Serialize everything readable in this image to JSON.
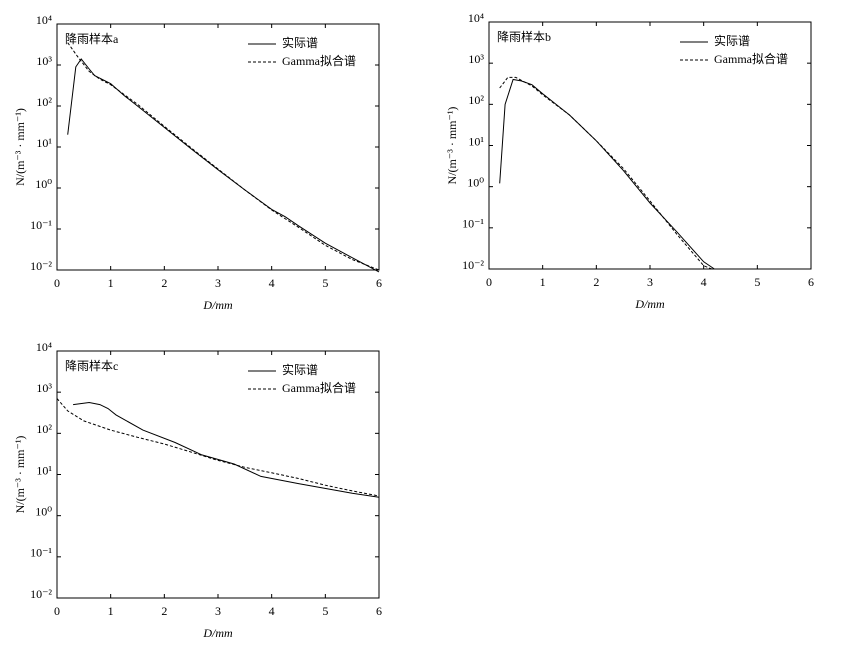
{
  "chart_data": [
    {
      "type": "line",
      "title": "降雨样本a",
      "xlabel": "D/mm",
      "ylabel": "N/(m⁻³ · mm⁻¹)",
      "yscale": "log",
      "xlim": [
        0,
        6
      ],
      "xticks": [
        0,
        1,
        2,
        3,
        4,
        5,
        6
      ],
      "ylim": [
        0.01,
        10000
      ],
      "yticks": [
        {
          "value": 0.01,
          "label": "10⁻²"
        },
        {
          "value": 0.1,
          "label": "10⁻¹"
        },
        {
          "value": 1,
          "label": "10⁰"
        },
        {
          "value": 10,
          "label": "10¹"
        },
        {
          "value": 100,
          "label": "10²"
        },
        {
          "value": 1000,
          "label": "10³"
        },
        {
          "value": 10000,
          "label": "10⁴"
        }
      ],
      "series": [
        {
          "name": "实际谱",
          "color": "#000000",
          "linestyle": "solid",
          "x": [
            0.2,
            0.35,
            0.45,
            0.6,
            0.7,
            1.0,
            1.25,
            1.5,
            2,
            2.5,
            3,
            3.5,
            4,
            4.25,
            4.5,
            5,
            5.5,
            6
          ],
          "values": [
            20,
            900,
            1400,
            800,
            550,
            350,
            180,
            100,
            30,
            9,
            2.8,
            0.9,
            0.3,
            0.2,
            0.12,
            0.045,
            0.02,
            0.009
          ]
        },
        {
          "name": "Gamma拟合谱",
          "color": "#000000",
          "linestyle": "dashed",
          "x": [
            0.2,
            0.4,
            0.6,
            0.8,
            1,
            1.5,
            2,
            2.5,
            3,
            3.5,
            4,
            4.5,
            5,
            5.5,
            6
          ],
          "values": [
            3500,
            1500,
            700,
            450,
            330,
            110,
            32,
            9.5,
            2.9,
            0.9,
            0.29,
            0.11,
            0.04,
            0.018,
            0.01
          ]
        }
      ]
    },
    {
      "type": "line",
      "title": "降雨样本b",
      "xlabel": "D/mm",
      "ylabel": "N/(m⁻³ · mm⁻¹)",
      "yscale": "log",
      "xlim": [
        0,
        6
      ],
      "xticks": [
        0,
        1,
        2,
        3,
        4,
        5,
        6
      ],
      "ylim": [
        0.01,
        10000
      ],
      "yticks": [
        {
          "value": 0.01,
          "label": "10⁻²"
        },
        {
          "value": 0.1,
          "label": "10⁻¹"
        },
        {
          "value": 1,
          "label": "10⁰"
        },
        {
          "value": 10,
          "label": "10¹"
        },
        {
          "value": 100,
          "label": "10²"
        },
        {
          "value": 1000,
          "label": "10³"
        },
        {
          "value": 10000,
          "label": "10⁴"
        }
      ],
      "series": [
        {
          "name": "实际谱",
          "color": "#000000",
          "linestyle": "solid",
          "x": [
            0.2,
            0.3,
            0.45,
            0.6,
            0.8,
            1,
            1.5,
            2,
            2.5,
            2.75,
            3,
            3.5,
            4,
            4.2
          ],
          "values": [
            1.2,
            100,
            400,
            370,
            300,
            180,
            55,
            13,
            2.5,
            1,
            0.4,
            0.08,
            0.015,
            0.01
          ]
        },
        {
          "name": "Gamma拟合谱",
          "color": "#000000",
          "linestyle": "dashed",
          "x": [
            0.2,
            0.35,
            0.5,
            0.8,
            1,
            1.5,
            2,
            2.5,
            3,
            3.5,
            4,
            4.15
          ],
          "values": [
            250,
            450,
            450,
            280,
            170,
            55,
            13,
            2.8,
            0.45,
            0.07,
            0.012,
            0.01
          ]
        }
      ]
    },
    {
      "type": "line",
      "title": "降雨样本c",
      "xlabel": "D/mm",
      "ylabel": "N/(m⁻³ · mm⁻¹)",
      "yscale": "log",
      "xlim": [
        0,
        6
      ],
      "xticks": [
        0,
        1,
        2,
        3,
        4,
        5,
        6
      ],
      "ylim": [
        0.01,
        10000
      ],
      "yticks": [
        {
          "value": 0.01,
          "label": "10⁻²"
        },
        {
          "value": 0.1,
          "label": "10⁻¹"
        },
        {
          "value": 1,
          "label": "10⁰"
        },
        {
          "value": 10,
          "label": "10¹"
        },
        {
          "value": 100,
          "label": "10²"
        },
        {
          "value": 1000,
          "label": "10³"
        },
        {
          "value": 10000,
          "label": "10⁴"
        }
      ],
      "series": [
        {
          "name": "实际谱",
          "color": "#000000",
          "linestyle": "solid",
          "x": [
            0.3,
            0.6,
            0.8,
            0.95,
            1.1,
            1.6,
            2.2,
            2.7,
            3.3,
            3.8,
            4.5,
            5.5,
            6
          ],
          "values": [
            500,
            560,
            500,
            400,
            280,
            120,
            60,
            30,
            18,
            9,
            6,
            3.5,
            2.8
          ]
        },
        {
          "name": "Gamma拟合谱",
          "color": "#000000",
          "linestyle": "dashed",
          "x": [
            0,
            0.2,
            0.5,
            1,
            1.5,
            2,
            2.5,
            3,
            3.5,
            4,
            4.5,
            5,
            5.5,
            6
          ],
          "values": [
            700,
            350,
            200,
            120,
            80,
            55,
            35,
            22,
            15,
            11,
            8,
            5.5,
            4,
            3
          ]
        }
      ]
    }
  ]
}
